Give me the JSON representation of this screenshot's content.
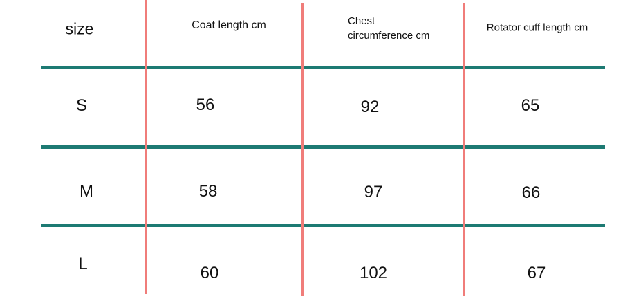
{
  "table": {
    "header": [
      "size",
      "Coat length cm",
      "Chest circumference cm",
      "Rotator cuff length cm"
    ],
    "rows": [
      [
        "S",
        56,
        92,
        65
      ],
      [
        "M",
        58,
        97,
        66
      ],
      [
        "L",
        60,
        102,
        67
      ]
    ]
  }
}
